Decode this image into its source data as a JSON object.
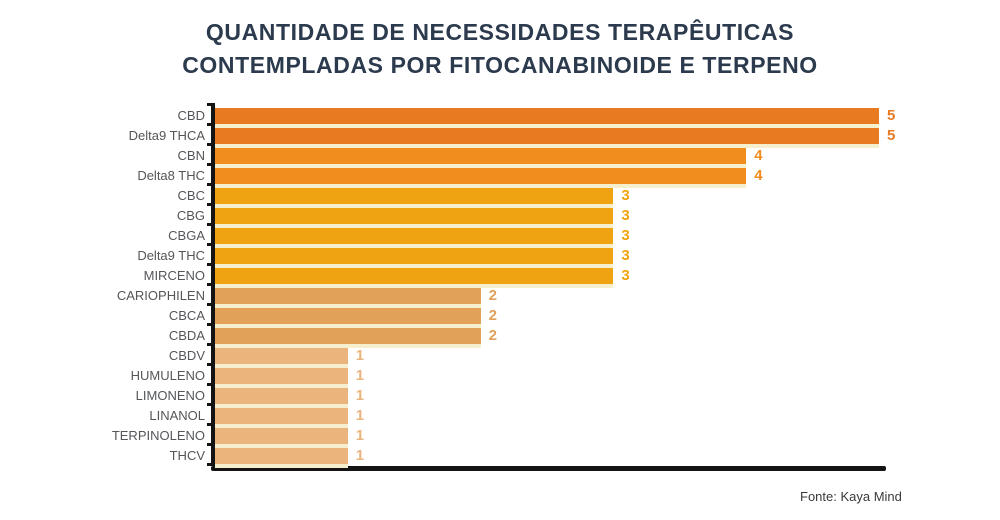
{
  "title": {
    "line1": "QUANTIDADE DE NECESSIDADES TERAPÊUTICAS",
    "line2": "CONTEMPLADAS POR FITOCANABINOIDE E TERPENO"
  },
  "source": "Fonte: Kaya Mind",
  "colors": {
    "title": "#2c3a4d",
    "category_label": "#54565a",
    "axis": "#141414",
    "bar_separator": "#f6efcd",
    "value_5": "#e87a22",
    "value_4": "#f08d1e",
    "value_3": "#f0a310",
    "value_2": "#e2a159",
    "value_1": "#eab47c"
  },
  "chart_data": {
    "type": "bar",
    "orientation": "horizontal",
    "title": "QUANTIDADE DE NECESSIDADES TERAPÊUTICAS CONTEMPLADAS POR FITOCANABINOIDE E TERPENO",
    "categories": [
      "CBD",
      "Delta9 THCA",
      "CBN",
      "Delta8 THC",
      "CBC",
      "CBG",
      "CBGA",
      "Delta9 THC",
      "MIRCENO",
      "CARIOPHILEN",
      "CBCA",
      "CBDA",
      "CBDV",
      "HUMULENO",
      "LIMONENO",
      "LINANOL",
      "TERPINOLENO",
      "THCV"
    ],
    "values": [
      5,
      5,
      4,
      4,
      3,
      3,
      3,
      3,
      3,
      2,
      2,
      2,
      1,
      1,
      1,
      1,
      1,
      1
    ],
    "xlim": [
      0,
      5
    ],
    "grid": false,
    "legend": "none",
    "value_labels": "end-of-bar",
    "source": "Fonte: Kaya Mind"
  }
}
